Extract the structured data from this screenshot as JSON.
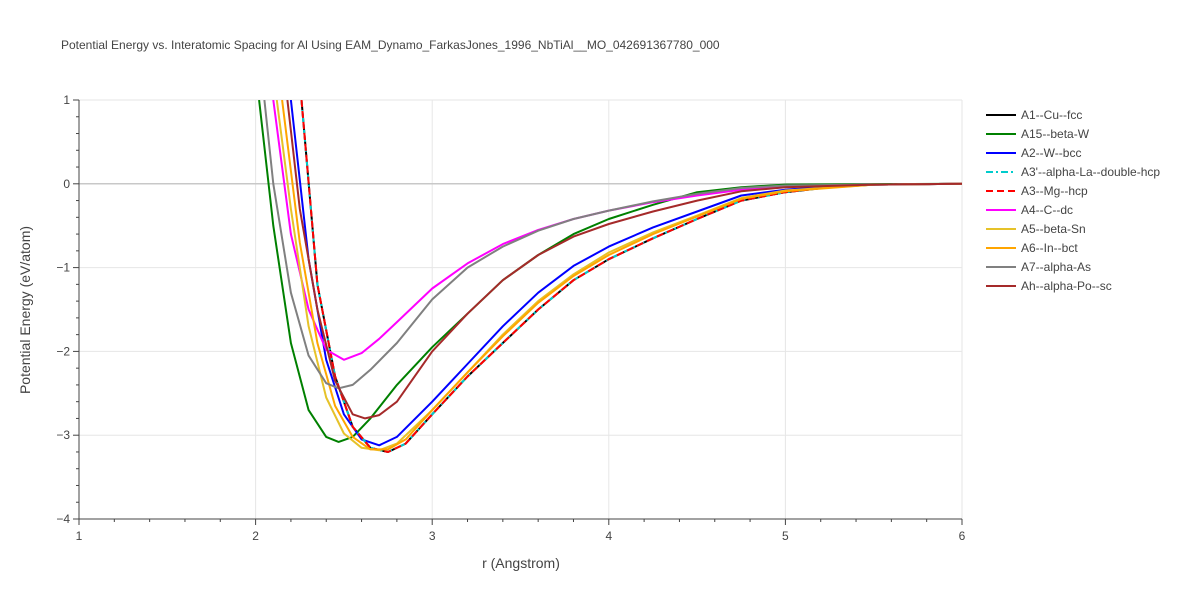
{
  "chart_data": {
    "type": "line",
    "title": "Potential Energy vs. Interatomic Spacing for Al Using EAM_Dynamo_FarkasJones_1996_NbTiAl__MO_042691367780_000",
    "xlabel": "r (Angstrom)",
    "ylabel": "Potential Energy (eV/atom)",
    "xlim": [
      1,
      6
    ],
    "ylim": [
      -4,
      1
    ],
    "xticks": [
      1,
      2,
      3,
      4,
      5,
      6
    ],
    "yticks": [
      -4,
      -3,
      -2,
      -1,
      0,
      1
    ],
    "grid": true,
    "legend_position": "right",
    "series": [
      {
        "name": "A1--Cu--fcc",
        "color": "#000000",
        "dash": "solid",
        "points": [
          [
            2.26,
            1.0
          ],
          [
            2.35,
            -1.2
          ],
          [
            2.45,
            -2.3
          ],
          [
            2.55,
            -2.9
          ],
          [
            2.65,
            -3.15
          ],
          [
            2.75,
            -3.2
          ],
          [
            2.85,
            -3.1
          ],
          [
            3.0,
            -2.75
          ],
          [
            3.2,
            -2.3
          ],
          [
            3.4,
            -1.9
          ],
          [
            3.6,
            -1.5
          ],
          [
            3.8,
            -1.15
          ],
          [
            4.0,
            -0.9
          ],
          [
            4.25,
            -0.65
          ],
          [
            4.5,
            -0.42
          ],
          [
            4.75,
            -0.2
          ],
          [
            5.0,
            -0.1
          ],
          [
            5.25,
            -0.04
          ],
          [
            5.5,
            -0.01
          ],
          [
            6.0,
            0.0
          ]
        ]
      },
      {
        "name": "A15--beta-W",
        "color": "#008000",
        "dash": "solid",
        "points": [
          [
            2.02,
            1.0
          ],
          [
            2.1,
            -0.5
          ],
          [
            2.2,
            -1.9
          ],
          [
            2.3,
            -2.7
          ],
          [
            2.4,
            -3.02
          ],
          [
            2.47,
            -3.08
          ],
          [
            2.55,
            -3.02
          ],
          [
            2.65,
            -2.8
          ],
          [
            2.8,
            -2.4
          ],
          [
            3.0,
            -1.95
          ],
          [
            3.2,
            -1.55
          ],
          [
            3.4,
            -1.15
          ],
          [
            3.6,
            -0.85
          ],
          [
            3.8,
            -0.6
          ],
          [
            4.0,
            -0.42
          ],
          [
            4.25,
            -0.25
          ],
          [
            4.5,
            -0.1
          ],
          [
            4.75,
            -0.04
          ],
          [
            5.0,
            -0.01
          ],
          [
            6.0,
            0.0
          ]
        ]
      },
      {
        "name": "A2--W--bcc",
        "color": "#0000ff",
        "dash": "solid",
        "points": [
          [
            2.2,
            1.0
          ],
          [
            2.3,
            -0.9
          ],
          [
            2.4,
            -2.1
          ],
          [
            2.5,
            -2.75
          ],
          [
            2.6,
            -3.05
          ],
          [
            2.7,
            -3.12
          ],
          [
            2.8,
            -3.02
          ],
          [
            3.0,
            -2.6
          ],
          [
            3.2,
            -2.15
          ],
          [
            3.4,
            -1.7
          ],
          [
            3.6,
            -1.3
          ],
          [
            3.8,
            -0.98
          ],
          [
            4.0,
            -0.75
          ],
          [
            4.25,
            -0.52
          ],
          [
            4.5,
            -0.33
          ],
          [
            4.75,
            -0.14
          ],
          [
            5.0,
            -0.07
          ],
          [
            5.25,
            -0.03
          ],
          [
            5.5,
            -0.01
          ],
          [
            6.0,
            0.0
          ]
        ]
      },
      {
        "name": "A3'--alpha-La--double-hcp",
        "color": "#00cccc",
        "dash": "dashdot",
        "points": [
          [
            2.26,
            1.0
          ],
          [
            2.35,
            -1.2
          ],
          [
            2.45,
            -2.3
          ],
          [
            2.55,
            -2.9
          ],
          [
            2.65,
            -3.15
          ],
          [
            2.75,
            -3.2
          ],
          [
            2.85,
            -3.1
          ],
          [
            3.0,
            -2.75
          ],
          [
            3.2,
            -2.3
          ],
          [
            3.4,
            -1.9
          ],
          [
            3.6,
            -1.5
          ],
          [
            3.8,
            -1.15
          ],
          [
            4.0,
            -0.9
          ],
          [
            4.25,
            -0.65
          ],
          [
            4.5,
            -0.42
          ],
          [
            4.75,
            -0.2
          ],
          [
            5.0,
            -0.1
          ],
          [
            5.25,
            -0.04
          ],
          [
            5.5,
            -0.01
          ],
          [
            6.0,
            0.0
          ]
        ]
      },
      {
        "name": "A3--Mg--hcp",
        "color": "#ff0000",
        "dash": "dash",
        "points": [
          [
            2.26,
            1.0
          ],
          [
            2.35,
            -1.2
          ],
          [
            2.45,
            -2.3
          ],
          [
            2.55,
            -2.9
          ],
          [
            2.65,
            -3.15
          ],
          [
            2.75,
            -3.2
          ],
          [
            2.85,
            -3.1
          ],
          [
            3.0,
            -2.75
          ],
          [
            3.2,
            -2.3
          ],
          [
            3.4,
            -1.9
          ],
          [
            3.6,
            -1.5
          ],
          [
            3.8,
            -1.15
          ],
          [
            4.0,
            -0.9
          ],
          [
            4.25,
            -0.65
          ],
          [
            4.5,
            -0.42
          ],
          [
            4.75,
            -0.2
          ],
          [
            5.0,
            -0.1
          ],
          [
            5.25,
            -0.04
          ],
          [
            5.5,
            -0.01
          ],
          [
            6.0,
            0.0
          ]
        ]
      },
      {
        "name": "A4--C--dc",
        "color": "#ff00ff",
        "dash": "solid",
        "points": [
          [
            2.1,
            1.0
          ],
          [
            2.2,
            -0.6
          ],
          [
            2.3,
            -1.5
          ],
          [
            2.4,
            -1.98
          ],
          [
            2.5,
            -2.1
          ],
          [
            2.6,
            -2.02
          ],
          [
            2.7,
            -1.85
          ],
          [
            2.8,
            -1.65
          ],
          [
            3.0,
            -1.25
          ],
          [
            3.2,
            -0.95
          ],
          [
            3.4,
            -0.72
          ],
          [
            3.6,
            -0.55
          ],
          [
            3.8,
            -0.42
          ],
          [
            4.0,
            -0.32
          ],
          [
            4.25,
            -0.22
          ],
          [
            4.5,
            -0.14
          ],
          [
            4.75,
            -0.07
          ],
          [
            5.0,
            -0.03
          ],
          [
            5.5,
            -0.01
          ],
          [
            6.0,
            0.0
          ]
        ]
      },
      {
        "name": "A5--beta-Sn",
        "color": "#e6c229",
        "dash": "solid",
        "points": [
          [
            2.12,
            1.0
          ],
          [
            2.2,
            -0.3
          ],
          [
            2.3,
            -1.7
          ],
          [
            2.4,
            -2.55
          ],
          [
            2.5,
            -2.98
          ],
          [
            2.6,
            -3.15
          ],
          [
            2.7,
            -3.18
          ],
          [
            2.8,
            -3.1
          ],
          [
            3.0,
            -2.7
          ],
          [
            3.2,
            -2.25
          ],
          [
            3.4,
            -1.8
          ],
          [
            3.6,
            -1.4
          ],
          [
            3.8,
            -1.08
          ],
          [
            4.0,
            -0.82
          ],
          [
            4.25,
            -0.58
          ],
          [
            4.5,
            -0.38
          ],
          [
            4.75,
            -0.17
          ],
          [
            5.0,
            -0.08
          ],
          [
            5.5,
            -0.01
          ],
          [
            6.0,
            0.0
          ]
        ]
      },
      {
        "name": "A6--In--bct",
        "color": "#ffa500",
        "dash": "solid",
        "points": [
          [
            2.15,
            1.0
          ],
          [
            2.25,
            -0.7
          ],
          [
            2.35,
            -1.9
          ],
          [
            2.45,
            -2.65
          ],
          [
            2.55,
            -3.02
          ],
          [
            2.65,
            -3.17
          ],
          [
            2.75,
            -3.17
          ],
          [
            2.85,
            -3.05
          ],
          [
            3.0,
            -2.7
          ],
          [
            3.2,
            -2.25
          ],
          [
            3.4,
            -1.82
          ],
          [
            3.6,
            -1.42
          ],
          [
            3.8,
            -1.1
          ],
          [
            4.0,
            -0.85
          ],
          [
            4.25,
            -0.6
          ],
          [
            4.5,
            -0.39
          ],
          [
            4.75,
            -0.18
          ],
          [
            5.0,
            -0.09
          ],
          [
            5.5,
            -0.01
          ],
          [
            6.0,
            0.0
          ]
        ]
      },
      {
        "name": "A7--alpha-As",
        "color": "#808080",
        "dash": "solid",
        "points": [
          [
            2.05,
            1.0
          ],
          [
            2.1,
            0.0
          ],
          [
            2.2,
            -1.3
          ],
          [
            2.3,
            -2.05
          ],
          [
            2.4,
            -2.38
          ],
          [
            2.47,
            -2.44
          ],
          [
            2.55,
            -2.4
          ],
          [
            2.65,
            -2.22
          ],
          [
            2.8,
            -1.9
          ],
          [
            3.0,
            -1.38
          ],
          [
            3.2,
            -1.0
          ],
          [
            3.4,
            -0.75
          ],
          [
            3.6,
            -0.56
          ],
          [
            3.8,
            -0.42
          ],
          [
            4.0,
            -0.32
          ],
          [
            4.25,
            -0.21
          ],
          [
            4.5,
            -0.12
          ],
          [
            4.75,
            -0.05
          ],
          [
            5.0,
            -0.02
          ],
          [
            6.0,
            0.0
          ]
        ]
      },
      {
        "name": "Ah--alpha-Po--sc",
        "color": "#a52a2a",
        "dash": "solid",
        "points": [
          [
            2.18,
            1.0
          ],
          [
            2.25,
            -0.3
          ],
          [
            2.35,
            -1.5
          ],
          [
            2.45,
            -2.35
          ],
          [
            2.55,
            -2.75
          ],
          [
            2.62,
            -2.8
          ],
          [
            2.7,
            -2.76
          ],
          [
            2.8,
            -2.6
          ],
          [
            3.0,
            -2.0
          ],
          [
            3.2,
            -1.55
          ],
          [
            3.4,
            -1.15
          ],
          [
            3.6,
            -0.85
          ],
          [
            3.8,
            -0.63
          ],
          [
            4.0,
            -0.48
          ],
          [
            4.25,
            -0.33
          ],
          [
            4.5,
            -0.2
          ],
          [
            4.75,
            -0.09
          ],
          [
            5.0,
            -0.04
          ],
          [
            5.5,
            -0.01
          ],
          [
            6.0,
            0.0
          ]
        ]
      }
    ]
  }
}
